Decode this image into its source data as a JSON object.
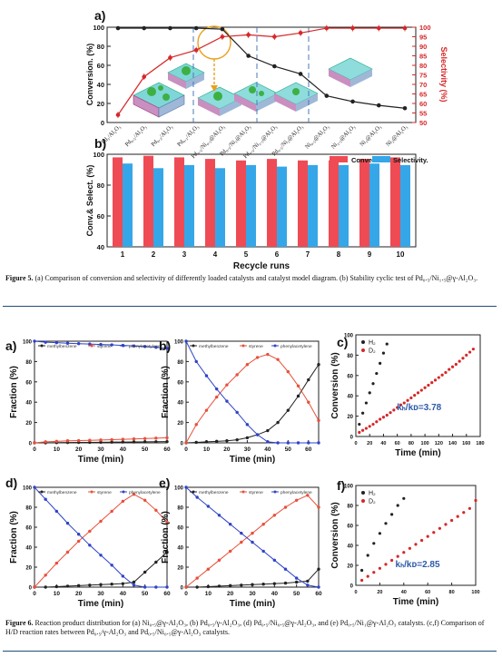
{
  "figure5": {
    "panel_a": {
      "label": "a)",
      "ylabel_left": "Conversion. (%)",
      "ylabel_right": "Selectivity (%)",
      "categories": [
        "Pd₁/Al₂O₃",
        "Pd₀.₅/Al₂O₃",
        "Pd₀.₂/Al₂O₃",
        "Pd₀.₁/Al₂O₃",
        "Pd₀.₅/Ni₀.₅@Al₂O₃",
        "Pd₀.₅/Ni₁@Al₂O₃",
        "Pd₀.₅/Ni₁.₅@Al₂O₃",
        "Pd₀.₅/Ni₂@Al₂O₃",
        "Ni₀.₅@Al₂O₃",
        "Ni₁.₅@Al₂O₃",
        "Ni₁@Al₂O₃",
        "Ni₂@Al₂O₃"
      ]
    },
    "panel_b": {
      "label": "b)",
      "ylabel": "Conv.& Select. (%)",
      "xlabel": "Recycle runs",
      "legend": [
        "Conversion.",
        "Selectivity."
      ]
    },
    "caption_label": "Figure 5.",
    "caption_text": " (a) Comparison of conversion and selectivity of differently loaded catalysts and catalyst model diagram. (b) Stability cyclic test of Pd₀.₅/Ni₁.₅@γ-Al₂O₃."
  },
  "figure6": {
    "panels": {
      "a": {
        "label": "a)"
      },
      "b": {
        "label": "b)"
      },
      "c": {
        "label": "c)",
        "ratio": "kₕ/kᴅ=3.78"
      },
      "d": {
        "label": "d)"
      },
      "e": {
        "label": "e)"
      },
      "f": {
        "label": "f)",
        "ratio": "kₕ/kᴅ=2.85"
      }
    },
    "legend_product": [
      "methylbenzene",
      "styrene",
      "phenylacetylene"
    ],
    "legend_iso": [
      "H₂",
      "D₂"
    ],
    "ylabel_fraction": "Fraction (%)",
    "ylabel_conversion": "Conversion (%)",
    "xlabel_time": "Time (min)",
    "caption_label": "Figure 6.",
    "caption_text": " Reaction product distribution for (a) Ni₀.₅@γ-Al₂O₃, (b) Pd₀.₅/γ-Al₂O₃, (d) Pd₀.₅/Ni₀.₅@γ-Al₂O₃, and (e) Pd₀.₅/Ni₁@γ-Al₂O₃ catalysts. (c,f) Comparison of H/D reaction rates between Pd₀.₅/γ-Al₂O₃ and Pd₀.₅/Ni₀.₅@γ-Al₂O₃ catalysts."
  },
  "chart_data": [
    {
      "id": "fig5a",
      "type": "line",
      "ylim_left": [
        0,
        100
      ],
      "ylim_right": [
        50,
        100
      ],
      "yticks_left": [
        0,
        20,
        40,
        60,
        80,
        100
      ],
      "yticks_right": [
        50,
        55,
        60,
        65,
        70,
        75,
        80,
        85,
        90,
        95,
        100
      ],
      "series": [
        {
          "name": "",
          "axis": "left",
          "color": "#222222",
          "values": [
            99,
            99,
            99,
            99,
            98,
            70,
            59,
            51,
            28,
            22,
            18,
            15
          ]
        },
        {
          "name": "",
          "axis": "right",
          "color": "#d62728",
          "values": [
            54,
            74,
            84,
            88,
            95,
            96,
            95,
            97,
            99.5,
            99.5,
            99.5,
            99.5
          ]
        }
      ]
    },
    {
      "id": "fig5b",
      "type": "bar",
      "categories": [
        "1",
        "2",
        "3",
        "4",
        "5",
        "6",
        "7",
        "8",
        "9",
        "10"
      ],
      "ylim": [
        40,
        100
      ],
      "yticks": [
        40,
        60,
        80,
        100
      ],
      "series": [
        {
          "name": "Conversion.",
          "color": "#ef4b55",
          "values": [
            98,
            99,
            98,
            97,
            96,
            97,
            96,
            96,
            97,
            98
          ]
        },
        {
          "name": "Selectivity.",
          "color": "#35a7e8",
          "values": [
            94,
            91,
            93,
            91,
            93,
            92,
            93,
            93,
            94,
            93
          ]
        }
      ]
    },
    {
      "id": "fig6a",
      "type": "line",
      "xlim": [
        0,
        60
      ],
      "ylim": [
        0,
        100
      ],
      "xticks": [
        0,
        10,
        20,
        30,
        40,
        50,
        60
      ],
      "yticks": [
        0,
        20,
        40,
        60,
        80,
        100
      ],
      "series": [
        {
          "name": "methylbenzene",
          "color": "#222222",
          "x": [
            0,
            5,
            10,
            15,
            20,
            25,
            30,
            35,
            40,
            45,
            50,
            55,
            60
          ],
          "y": [
            0,
            0,
            0.2,
            0.3,
            0.4,
            0.5,
            0.6,
            0.7,
            0.8,
            0.9,
            1,
            1.1,
            1.2
          ]
        },
        {
          "name": "styrene",
          "color": "#e8503a",
          "x": [
            0,
            5,
            10,
            15,
            20,
            25,
            30,
            35,
            40,
            45,
            50,
            55,
            60
          ],
          "y": [
            0,
            1,
            1.5,
            2,
            2.2,
            2.5,
            2.8,
            3.1,
            3.5,
            3.8,
            4.2,
            4.6,
            5
          ]
        },
        {
          "name": "phenylacetylene",
          "color": "#2e43c8",
          "x": [
            0,
            5,
            10,
            15,
            20,
            25,
            30,
            35,
            40,
            45,
            50,
            55,
            60
          ],
          "y": [
            100,
            99,
            98.5,
            98,
            97.6,
            97.2,
            96.8,
            96.4,
            95.9,
            95.4,
            94.8,
            94,
            93
          ]
        }
      ]
    },
    {
      "id": "fig6b",
      "type": "line",
      "xlim": [
        0,
        65
      ],
      "ylim": [
        0,
        100
      ],
      "xticks": [
        0,
        10,
        20,
        30,
        40,
        50,
        60
      ],
      "yticks": [
        0,
        20,
        40,
        60,
        80,
        100
      ],
      "series": [
        {
          "name": "methylbenzene",
          "color": "#222222",
          "x": [
            0,
            5,
            10,
            15,
            20,
            25,
            30,
            35,
            40,
            45,
            50,
            55,
            60,
            65
          ],
          "y": [
            0,
            0.5,
            1,
            1.5,
            2,
            3,
            5,
            8,
            12,
            20,
            32,
            46,
            62,
            77
          ]
        },
        {
          "name": "styrene",
          "color": "#e8503a",
          "x": [
            0,
            5,
            10,
            15,
            20,
            25,
            30,
            35,
            40,
            45,
            50,
            55,
            60,
            65
          ],
          "y": [
            0,
            18,
            32,
            45,
            57,
            67,
            77,
            84,
            87,
            82,
            70,
            56,
            40,
            22
          ]
        },
        {
          "name": "phenylacetylene",
          "color": "#2e43c8",
          "x": [
            0,
            5,
            10,
            15,
            20,
            25,
            30,
            35,
            40,
            45,
            50,
            55,
            60,
            65
          ],
          "y": [
            100,
            80,
            66,
            53,
            41,
            30,
            18,
            8,
            1,
            0,
            0,
            0,
            0,
            0
          ]
        }
      ]
    },
    {
      "id": "fig6c",
      "type": "scatter",
      "xlim": [
        0,
        180
      ],
      "ylim": [
        0,
        100
      ],
      "xticks": [
        0,
        20,
        40,
        60,
        80,
        100,
        120,
        140,
        160,
        180
      ],
      "yticks": [
        0,
        20,
        40,
        60,
        80,
        100
      ],
      "series": [
        {
          "name": "H₂",
          "color": "#222222",
          "x": [
            5,
            10,
            15,
            20,
            25,
            30,
            35,
            40,
            45
          ],
          "y": [
            12,
            23,
            33,
            43,
            52,
            62,
            72,
            82,
            91
          ]
        },
        {
          "name": "D₂",
          "color": "#d62728",
          "x": [
            5,
            10,
            15,
            20,
            25,
            30,
            35,
            40,
            45,
            50,
            55,
            60,
            65,
            70,
            75,
            80,
            85,
            90,
            95,
            100,
            105,
            110,
            115,
            120,
            125,
            130,
            135,
            140,
            145,
            150,
            155,
            160,
            165,
            170
          ],
          "y": [
            4,
            6,
            8,
            10,
            12,
            14.5,
            17,
            19,
            21,
            23.5,
            26,
            28.5,
            31,
            33,
            35.5,
            38,
            40.5,
            43,
            45.5,
            48,
            50.5,
            53,
            55.5,
            58,
            60.5,
            63,
            66,
            68.5,
            71,
            74,
            77,
            80,
            83,
            86
          ]
        }
      ]
    },
    {
      "id": "fig6d",
      "type": "line",
      "xlim": [
        0,
        60
      ],
      "ylim": [
        0,
        100
      ],
      "xticks": [
        0,
        10,
        20,
        30,
        40,
        50,
        60
      ],
      "yticks": [
        0,
        20,
        40,
        60,
        80,
        100
      ],
      "series": [
        {
          "name": "methylbenzene",
          "color": "#222222",
          "x": [
            0,
            5,
            10,
            15,
            20,
            25,
            30,
            35,
            40,
            45,
            50,
            55,
            60
          ],
          "y": [
            0,
            0,
            0.5,
            1,
            1.5,
            2,
            2.5,
            3,
            3.5,
            5,
            15,
            25,
            35
          ]
        },
        {
          "name": "styrene",
          "color": "#e8503a",
          "x": [
            0,
            5,
            10,
            15,
            20,
            25,
            30,
            35,
            40,
            45,
            50,
            55,
            60
          ],
          "y": [
            0,
            12,
            24,
            35,
            46,
            56,
            66,
            76,
            86,
            93,
            87,
            77,
            65
          ]
        },
        {
          "name": "phenylacetylene",
          "color": "#2e43c8",
          "x": [
            0,
            5,
            10,
            15,
            20,
            25,
            30,
            35,
            40,
            45,
            50,
            55,
            60
          ],
          "y": [
            100,
            88,
            76,
            64,
            53,
            42,
            32,
            22,
            11,
            2,
            0,
            0,
            0
          ]
        }
      ]
    },
    {
      "id": "fig6e",
      "type": "line",
      "xlim": [
        0,
        60
      ],
      "ylim": [
        0,
        100
      ],
      "xticks": [
        0,
        10,
        20,
        30,
        40,
        50,
        60
      ],
      "yticks": [
        0,
        20,
        40,
        60,
        80,
        100
      ],
      "series": [
        {
          "name": "methylbenzene",
          "color": "#222222",
          "x": [
            0,
            5,
            10,
            15,
            20,
            25,
            30,
            35,
            40,
            45,
            50,
            55,
            60
          ],
          "y": [
            0,
            0,
            0.5,
            1,
            1.5,
            2,
            2.5,
            3,
            3.5,
            4,
            5,
            6,
            18
          ]
        },
        {
          "name": "styrene",
          "color": "#e8503a",
          "x": [
            0,
            5,
            10,
            15,
            20,
            25,
            30,
            35,
            40,
            45,
            50,
            55,
            60
          ],
          "y": [
            0,
            9,
            18,
            27,
            36,
            45,
            54,
            63,
            72,
            80,
            87,
            92,
            80
          ]
        },
        {
          "name": "phenylacetylene",
          "color": "#2e43c8",
          "x": [
            0,
            5,
            10,
            15,
            20,
            25,
            30,
            35,
            40,
            45,
            50,
            55,
            60
          ],
          "y": [
            100,
            90,
            81,
            72,
            63,
            54,
            45,
            36,
            27,
            18,
            9,
            2,
            0
          ]
        }
      ]
    },
    {
      "id": "fig6f",
      "type": "scatter",
      "xlim": [
        0,
        100
      ],
      "ylim": [
        0,
        100
      ],
      "xticks": [
        0,
        20,
        40,
        60,
        80,
        100
      ],
      "yticks": [
        0,
        20,
        40,
        60,
        80,
        100
      ],
      "series": [
        {
          "name": "H₂",
          "color": "#222222",
          "x": [
            5,
            10,
            15,
            20,
            25,
            30,
            35,
            40
          ],
          "y": [
            15,
            30,
            42,
            52,
            62,
            71,
            80,
            87
          ]
        },
        {
          "name": "D₂",
          "color": "#d62728",
          "x": [
            5,
            10,
            15,
            20,
            25,
            30,
            35,
            40,
            45,
            50,
            55,
            60,
            65,
            70,
            75,
            80,
            85,
            90,
            95,
            100
          ],
          "y": [
            5,
            9,
            13,
            17,
            21,
            25,
            29,
            33,
            37,
            41,
            45,
            49,
            53,
            57,
            61,
            65,
            69,
            73,
            77,
            85
          ]
        }
      ]
    }
  ]
}
